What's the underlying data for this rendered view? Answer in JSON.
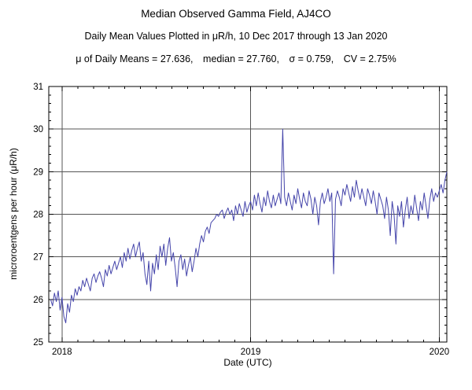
{
  "title": "Median Observed Gamma Field, AJ4CO",
  "subtitle": "Daily Mean Values Plotted in μR/h, 10 Dec 2017 through 13 Jan 2020",
  "stats_line": "μ of Daily Means = 27.636, median = 27.760, σ = 0.759, CV = 2.75%",
  "colors": {
    "background": "#ffffff",
    "frame": "#000000",
    "grid": "#555555",
    "line": "#4444aa",
    "text": "#000000"
  },
  "chart_data": {
    "type": "line",
    "title": "Median Observed Gamma Field, AJ4CO",
    "subtitle": "Daily Mean Values Plotted in μR/h, 10 Dec 2017 through 13 Jan 2020",
    "xlabel": "Date (UTC)",
    "ylabel": "microroentgens per hour (μR/h)",
    "x_unit": "decimal_year_utc",
    "date_range": [
      "10 Dec 2017",
      "13 Jan 2020"
    ],
    "xlim": [
      2017.93,
      2020.04
    ],
    "ylim": [
      25,
      31
    ],
    "x_ticks": [
      2018,
      2019,
      2020
    ],
    "y_ticks": [
      25,
      26,
      27,
      28,
      29,
      30,
      31
    ],
    "grid": true,
    "legend": "none",
    "line_color": "#4444aa",
    "stats": {
      "mean_of_daily_means": 27.636,
      "median": 27.76,
      "sigma": 0.759,
      "cv_percent": 2.75
    },
    "series": [
      {
        "name": "daily-mean-gamma",
        "x_start": 2017.94,
        "x_step_years": 0.01,
        "y": [
          26.0,
          25.85,
          26.15,
          25.95,
          26.2,
          25.75,
          26.05,
          25.6,
          25.45,
          25.9,
          25.7,
          26.1,
          25.95,
          26.25,
          26.1,
          26.3,
          26.2,
          26.45,
          26.3,
          26.5,
          26.35,
          26.2,
          26.5,
          26.6,
          26.4,
          26.55,
          26.65,
          26.5,
          26.3,
          26.7,
          26.55,
          26.8,
          26.6,
          26.75,
          26.9,
          26.7,
          26.85,
          27.0,
          26.75,
          27.1,
          26.9,
          27.2,
          26.95,
          27.15,
          27.3,
          27.0,
          27.2,
          27.35,
          26.9,
          27.1,
          26.6,
          26.35,
          26.9,
          26.2,
          26.85,
          26.6,
          27.05,
          26.7,
          27.25,
          27.0,
          27.3,
          26.8,
          27.2,
          27.45,
          26.9,
          27.1,
          26.75,
          26.3,
          26.9,
          27.05,
          26.7,
          26.95,
          26.55,
          26.8,
          27.0,
          26.65,
          26.9,
          27.2,
          27.0,
          27.3,
          27.5,
          27.35,
          27.6,
          27.7,
          27.55,
          27.8,
          27.85,
          27.9,
          28.0,
          27.95,
          28.05,
          28.1,
          27.9,
          28.05,
          28.15,
          28.0,
          28.1,
          27.85,
          28.2,
          28.0,
          28.25,
          28.1,
          27.95,
          28.3,
          28.05,
          28.2,
          28.3,
          28.1,
          28.45,
          28.2,
          28.5,
          28.25,
          28.05,
          28.4,
          28.2,
          28.55,
          28.3,
          28.15,
          28.45,
          28.2,
          28.35,
          28.5,
          28.25,
          30.0,
          28.4,
          28.2,
          28.5,
          28.3,
          28.1,
          28.45,
          28.25,
          28.6,
          28.35,
          28.15,
          28.5,
          28.3,
          28.2,
          28.55,
          28.35,
          28.0,
          28.4,
          28.2,
          27.75,
          28.3,
          28.5,
          28.25,
          28.4,
          28.6,
          28.3,
          28.5,
          26.6,
          28.35,
          28.55,
          28.4,
          28.2,
          28.6,
          28.45,
          28.7,
          28.5,
          28.3,
          28.65,
          28.4,
          28.8,
          28.55,
          28.35,
          28.6,
          28.4,
          28.2,
          28.6,
          28.45,
          28.25,
          28.55,
          28.3,
          28.0,
          28.5,
          28.35,
          28.2,
          27.9,
          28.4,
          28.1,
          27.5,
          28.3,
          28.0,
          27.3,
          28.2,
          27.95,
          28.3,
          27.7,
          28.1,
          28.4,
          27.9,
          28.2,
          28.0,
          28.45,
          28.15,
          27.85,
          28.3,
          28.1,
          28.5,
          28.2,
          27.9,
          28.35,
          28.6,
          28.3,
          28.5,
          28.4,
          28.55,
          28.7,
          28.5,
          28.8,
          29.0
        ]
      }
    ]
  }
}
